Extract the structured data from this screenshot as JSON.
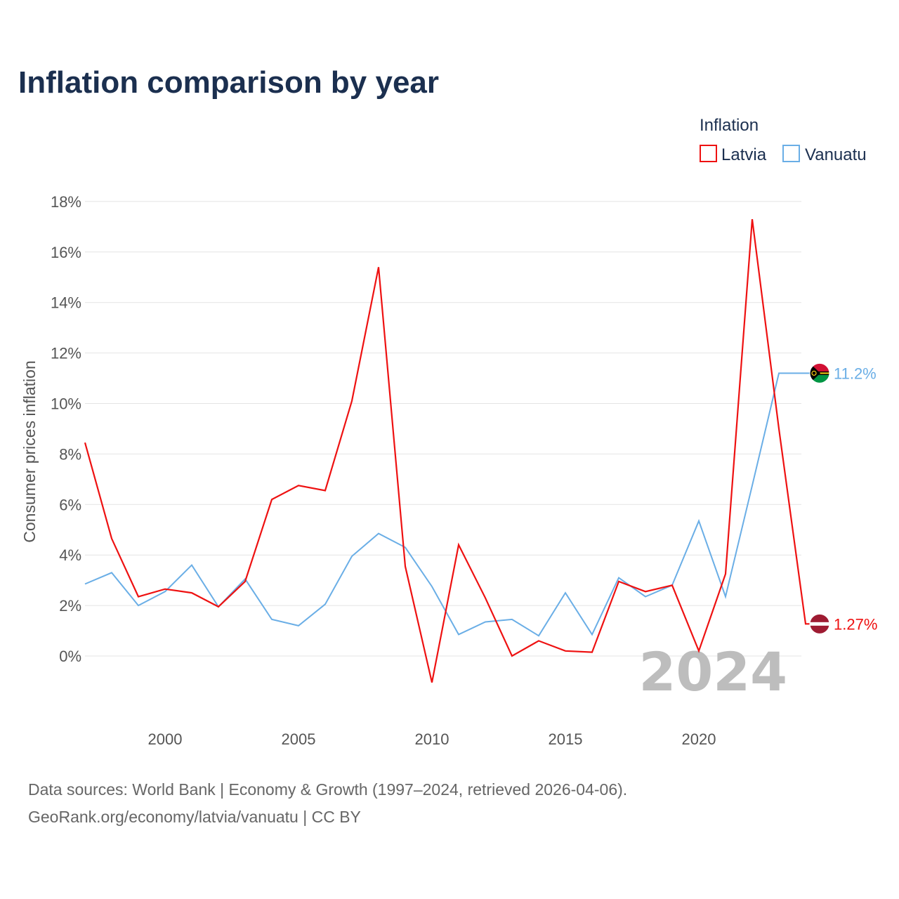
{
  "chart_data": {
    "type": "line",
    "title": "Inflation comparison by year",
    "ylabel": "Consumer prices inflation",
    "xlabel": "",
    "legend_title": "Inflation",
    "legend_position": "top-right",
    "xlim": [
      1997,
      2024
    ],
    "ylim": [
      -4,
      18
    ],
    "x_ticks": [
      2000,
      2005,
      2010,
      2015,
      2020
    ],
    "x_tick_labels": [
      "2000",
      "2005",
      "2010",
      "2015",
      "2020"
    ],
    "y_ticks": [
      0,
      2,
      4,
      6,
      8,
      10,
      12,
      14,
      16,
      18
    ],
    "y_tick_labels": [
      "0%",
      "2%",
      "4%",
      "6%",
      "8%",
      "10%",
      "12%",
      "14%",
      "16%",
      "18%"
    ],
    "grid": true,
    "current_year_label": "2024",
    "x": [
      1997,
      1998,
      1999,
      2000,
      2001,
      2002,
      2003,
      2004,
      2005,
      2006,
      2007,
      2008,
      2009,
      2010,
      2011,
      2012,
      2013,
      2014,
      2015,
      2016,
      2017,
      2018,
      2019,
      2020,
      2021,
      2022,
      2023,
      2024
    ],
    "series": [
      {
        "name": "Latvia",
        "color": "#ee1111",
        "flag": "latvia-flag-icon",
        "end_label": "1.27%",
        "values": [
          8.45,
          4.65,
          2.35,
          2.65,
          2.5,
          1.95,
          2.95,
          6.2,
          6.75,
          6.55,
          10.1,
          15.4,
          3.55,
          -1.05,
          4.4,
          2.3,
          0.0,
          0.6,
          0.2,
          0.15,
          2.95,
          2.55,
          2.8,
          0.2,
          3.25,
          17.3,
          9.0,
          1.27
        ]
      },
      {
        "name": "Vanuatu",
        "color": "#6aaee6",
        "flag": "vanuatu-flag-icon",
        "end_label": "11.2%",
        "values": [
          2.85,
          3.3,
          2.0,
          2.55,
          3.6,
          1.95,
          3.05,
          1.45,
          1.2,
          2.05,
          3.95,
          4.85,
          4.3,
          2.75,
          0.85,
          1.35,
          1.45,
          0.8,
          2.5,
          0.85,
          3.1,
          2.35,
          2.8,
          5.35,
          2.35,
          6.75,
          11.2,
          11.2
        ]
      }
    ]
  },
  "footer": {
    "source_line": "Data sources: World Bank | Economy & Growth (1997–2024, retrieved 2026-04-06).",
    "credit_line": "GeoRank.org/economy/latvia/vanuatu | CC BY"
  }
}
